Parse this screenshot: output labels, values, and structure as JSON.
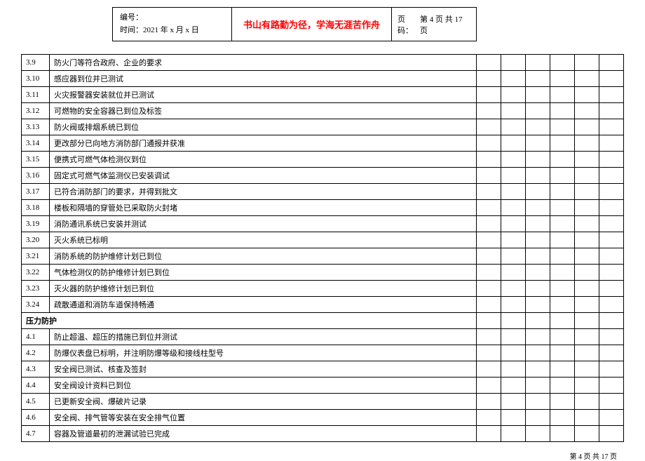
{
  "header": {
    "bianhao_label": "编号：",
    "shijian_label": "时间：",
    "shijian_value": "2021 年 x 月 x 日",
    "motto": "书山有路勤为径，学海无涯苦作舟",
    "page_label": "页码：",
    "page_value": "第 4 页  共 17 页"
  },
  "rows": [
    {
      "num": "3.9",
      "desc": "防火门等符合政府、企业的要求"
    },
    {
      "num": "3.10",
      "desc": "感应器到位并已测试"
    },
    {
      "num": "3.11",
      "desc": "火灾报警器安装就位并已测试"
    },
    {
      "num": "3.12",
      "desc": "可燃物的安全容器已到位及标签"
    },
    {
      "num": "3.13",
      "desc": "防火阀或排烟系统已到位"
    },
    {
      "num": "3.14",
      "desc": "更改部分已向地方消防部门通报并获准"
    },
    {
      "num": "3.15",
      "desc": "便携式可燃气体检测仪到位"
    },
    {
      "num": "3.16",
      "desc": "固定式可燃气体监测仪已安装调试"
    },
    {
      "num": "3.17",
      "desc": "已符合消防部门的要求，并得到批文"
    },
    {
      "num": "3.18",
      "desc": "楼板和隔墙的穿管处已采取防火封堵"
    },
    {
      "num": "3.19",
      "desc": "消防通讯系统已安装并测试"
    },
    {
      "num": "3.20",
      "desc": "灭火系统已标明"
    },
    {
      "num": "3.21",
      "desc": "消防系统的防护维修计划已到位"
    },
    {
      "num": "3.22",
      "desc": "气体检测仪的防护维修计划已到位"
    },
    {
      "num": "3.23",
      "desc": "灭火器的防护维修计划已到位"
    },
    {
      "num": "3.24",
      "desc": "疏散通道和消防车道保持畅通"
    }
  ],
  "section_title": "压力防护",
  "rows2": [
    {
      "num": "4.1",
      "desc": "防止超温、超压的措施已到位并测试"
    },
    {
      "num": "4.2",
      "desc": "防爆仪表盘已标明，并注明防爆等级和接线柱型号"
    },
    {
      "num": "4.3",
      "desc": "安全阀已测试、核查及签封"
    },
    {
      "num": "4.4",
      "desc": "安全阀设计资料已到位"
    },
    {
      "num": "4.5",
      "desc": "已更新安全阀、爆破片记录"
    },
    {
      "num": "4.6",
      "desc": "安全阀、排气管等安装在安全排气位置"
    },
    {
      "num": "4.7",
      "desc": "容器及管道最初的泄漏试验已完成"
    }
  ],
  "footer": "第 4 页 共 17 页",
  "style": {
    "motto_color": "#ff0000",
    "border_color": "#000000",
    "bg_color": "#ffffff",
    "text_color": "#000000",
    "check_cols": 6
  }
}
